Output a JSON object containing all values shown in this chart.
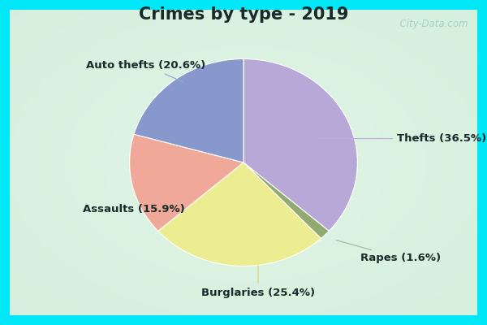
{
  "title": "Crimes by type - 2019",
  "slices": [
    {
      "label": "Thefts",
      "pct": 36.5,
      "color": "#b8a8d8"
    },
    {
      "label": "Rapes",
      "pct": 1.6,
      "color": "#90aa70"
    },
    {
      "label": "Burglaries",
      "pct": 25.4,
      "color": "#ecec90"
    },
    {
      "label": "Assaults",
      "pct": 15.9,
      "color": "#f0a898"
    },
    {
      "label": "Auto thefts",
      "pct": 20.6,
      "color": "#8898cc"
    }
  ],
  "bg_cyan": "#00e8f8",
  "bg_main_center": "#d0ecd8",
  "bg_main_edge": "#c0e4cc",
  "title_fontsize": 15,
  "label_fontsize": 9.5,
  "watermark": "  City-Data.com",
  "border_width": 12
}
